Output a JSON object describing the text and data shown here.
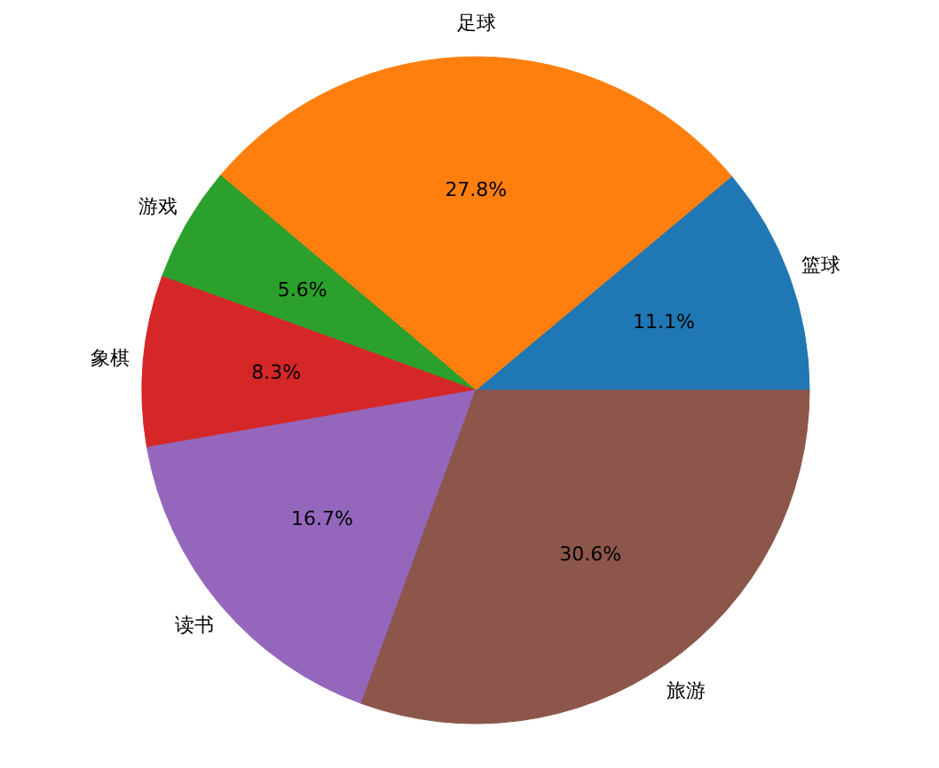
{
  "chart_data": {
    "type": "pie",
    "categories": [
      "篮球",
      "足球",
      "游戏",
      "象棋",
      "读书",
      "旅游"
    ],
    "values": [
      11.1,
      27.8,
      5.6,
      8.3,
      16.7,
      30.6
    ],
    "value_labels": [
      "11.1%",
      "27.8%",
      "5.6%",
      "8.3%",
      "16.7%",
      "30.6%"
    ],
    "colors": [
      "#1f77b4",
      "#ff7f0e",
      "#2ca02c",
      "#d62728",
      "#9467bd",
      "#8c564b"
    ]
  }
}
